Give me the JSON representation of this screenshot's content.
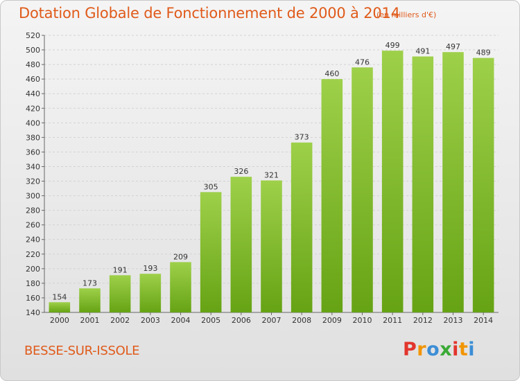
{
  "chart_data": {
    "type": "bar",
    "title": "Dotation Globale de Fonctionnement de 2000 à 2014",
    "subtitle": "(en milliers d'€)",
    "categories": [
      "2000",
      "2001",
      "2002",
      "2003",
      "2004",
      "2005",
      "2006",
      "2007",
      "2008",
      "2009",
      "2010",
      "2011",
      "2012",
      "2013",
      "2014"
    ],
    "values": [
      154,
      173,
      191,
      193,
      209,
      305,
      326,
      321,
      373,
      460,
      476,
      499,
      491,
      497,
      489
    ],
    "xlabel": "",
    "ylabel": "",
    "ylim": [
      140,
      520
    ],
    "yticks": [
      140,
      160,
      180,
      200,
      220,
      240,
      260,
      280,
      300,
      320,
      340,
      360,
      380,
      400,
      420,
      440,
      460,
      480,
      500,
      520
    ],
    "grid": true,
    "bar_color": "#7cbc2a"
  },
  "footer": {
    "place": "BESSE-SUR-ISSOLE",
    "logo_letters": [
      "P",
      "r",
      "o",
      "x",
      "i",
      "t",
      "i"
    ],
    "logo_colors": [
      "#e2352d",
      "#f29400",
      "#3c8ed6",
      "#3aaa35",
      "#e2352d",
      "#f29400",
      "#3c8ed6"
    ]
  }
}
